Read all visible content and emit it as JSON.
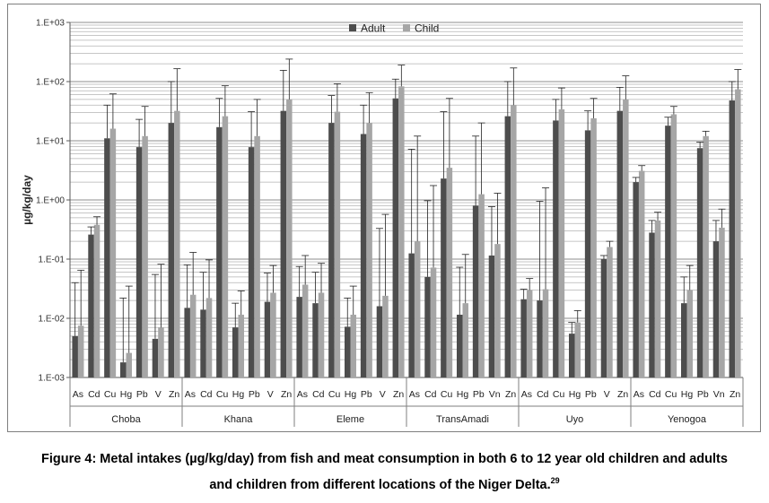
{
  "chart_data": {
    "type": "bar",
    "scale": "log",
    "ylabel": "µg/kg/day",
    "ylim": [
      0.001,
      1000
    ],
    "ytick_values": [
      0.001,
      0.01,
      0.1,
      1,
      10,
      100,
      1000
    ],
    "ytick_labels": [
      "1.E-03",
      "1.E-02",
      "1.E-01",
      "1.E+00",
      "1.E+01",
      "1.E+02",
      "1.E+03"
    ],
    "legend": {
      "position": "top-center"
    },
    "series": [
      {
        "name": "Adult",
        "color": "#4d4d4d"
      },
      {
        "name": "Child",
        "color": "#a6a6a6"
      }
    ],
    "groups": [
      {
        "name": "Choba",
        "metals": [
          "As",
          "Cd",
          "Cu",
          "Hg",
          "Pb",
          "V",
          "Zn"
        ],
        "adult": [
          0.005,
          0.26,
          11,
          0.0018,
          7.8,
          0.0045,
          20
        ],
        "adult_err": [
          0.04,
          0.35,
          40,
          0.022,
          23,
          0.055,
          100
        ],
        "child": [
          0.0075,
          0.38,
          16,
          0.0026,
          12,
          0.007,
          32
        ],
        "child_err": [
          0.065,
          0.52,
          62,
          0.035,
          38,
          0.082,
          165
        ]
      },
      {
        "name": "Khana",
        "metals": [
          "As",
          "Cd",
          "Cu",
          "Hg",
          "Pb",
          "V",
          "Zn"
        ],
        "adult": [
          0.015,
          0.014,
          17,
          0.007,
          7.8,
          0.019,
          32
        ],
        "adult_err": [
          0.08,
          0.06,
          52,
          0.018,
          31,
          0.058,
          155
        ],
        "child": [
          0.025,
          0.022,
          26,
          0.0115,
          12,
          0.027,
          50
        ],
        "child_err": [
          0.13,
          0.097,
          85,
          0.029,
          50,
          0.078,
          240
        ]
      },
      {
        "name": "Eleme",
        "metals": [
          "As",
          "Cd",
          "Cu",
          "Hg",
          "Pb",
          "V",
          "Zn"
        ],
        "adult": [
          0.023,
          0.018,
          20,
          0.0072,
          13,
          0.016,
          52
        ],
        "adult_err": [
          0.075,
          0.06,
          58,
          0.022,
          40,
          0.33,
          110
        ],
        "child": [
          0.037,
          0.027,
          31,
          0.0115,
          20,
          0.024,
          83
        ],
        "child_err": [
          0.115,
          0.085,
          92,
          0.035,
          65,
          0.57,
          190
        ]
      },
      {
        "name": "TransAmadi",
        "metals": [
          "As",
          "Cd",
          "Cu",
          "Hg",
          "Pb",
          "Vn",
          "Zn"
        ],
        "adult": [
          0.125,
          0.05,
          2.3,
          0.0115,
          0.8,
          0.115,
          26
        ],
        "adult_err": [
          7.2,
          0.97,
          31,
          0.073,
          12,
          0.77,
          100
        ],
        "child": [
          0.2,
          0.072,
          3.5,
          0.018,
          1.25,
          0.18,
          40
        ],
        "child_err": [
          12,
          1.75,
          52,
          0.12,
          20,
          1.3,
          170
        ]
      },
      {
        "name": "Uyo",
        "metals": [
          "As",
          "Cd",
          "Cu",
          "Hg",
          "Pb",
          "V",
          "Zn"
        ],
        "adult": [
          0.021,
          0.02,
          22,
          0.0055,
          15,
          0.1,
          32
        ],
        "adult_err": [
          0.031,
          0.95,
          50,
          0.0085,
          32,
          0.115,
          80
        ],
        "child": [
          0.03,
          0.031,
          34,
          0.0085,
          24,
          0.16,
          50
        ],
        "child_err": [
          0.047,
          1.6,
          78,
          0.0135,
          52,
          0.2,
          125
        ]
      },
      {
        "name": "Yenogoa",
        "metals": [
          "As",
          "Cd",
          "Cu",
          "Hg",
          "Pb",
          "Vn",
          "Zn"
        ],
        "adult": [
          2.0,
          0.28,
          18,
          0.018,
          7.5,
          0.2,
          48
        ],
        "adult_err": [
          2.4,
          0.45,
          25,
          0.05,
          9.5,
          0.45,
          100
        ],
        "child": [
          3.1,
          0.45,
          28,
          0.03,
          12,
          0.34,
          74
        ],
        "child_err": [
          3.8,
          0.62,
          38,
          0.078,
          14.5,
          0.7,
          160
        ]
      }
    ]
  },
  "caption": {
    "line1": "Figure 4: Metal intakes (µg/kg/day) from fish and meat consumption in both 6 to 12 year old children and adults",
    "line2_text": "and children from different locations of the Niger Delta.",
    "line2_ref": "29"
  }
}
